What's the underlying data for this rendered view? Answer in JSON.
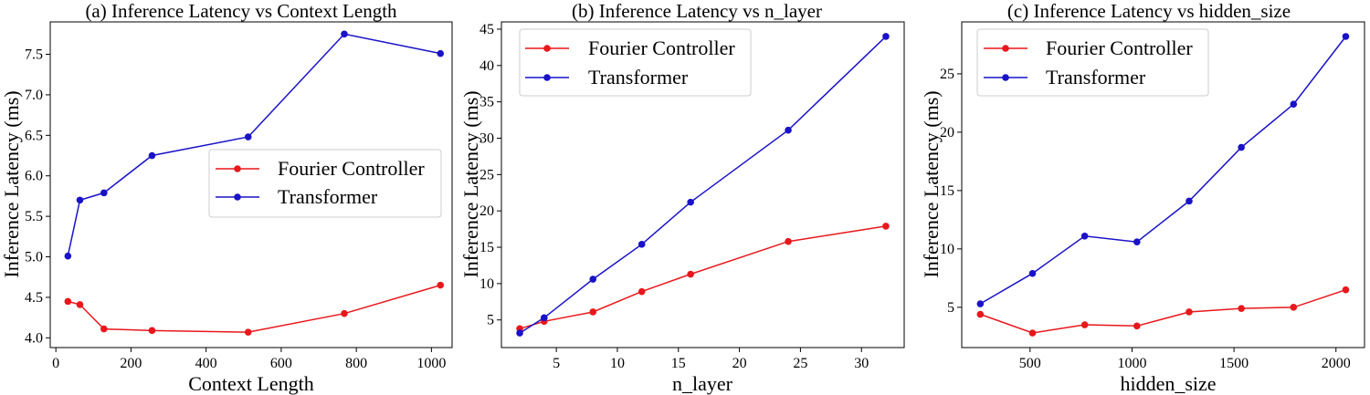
{
  "chart_data": [
    {
      "type": "line",
      "title": "(a) Inference Latency vs Context Length",
      "xlabel": "Context Length",
      "ylabel": "Inference Latency (ms)",
      "xlim": [
        -15,
        1055
      ],
      "ylim": [
        3.88,
        7.9
      ],
      "xticks": [
        0,
        200,
        400,
        600,
        800,
        1000
      ],
      "yticks": [
        4.0,
        4.5,
        5.0,
        5.5,
        6.0,
        6.5,
        7.0,
        7.5
      ],
      "yfmt": 1,
      "legend": "center-right",
      "series": [
        {
          "name": "Fourier Controller",
          "color": "#e8171c",
          "x": [
            32,
            64,
            128,
            256,
            512,
            768,
            1024
          ],
          "y": [
            4.45,
            4.41,
            4.11,
            4.09,
            4.07,
            4.3,
            4.65
          ]
        },
        {
          "name": "Transformer",
          "color": "#1a12c8",
          "x": [
            32,
            64,
            128,
            256,
            512,
            768,
            1024
          ],
          "y": [
            5.01,
            5.7,
            5.79,
            6.25,
            6.48,
            7.75,
            7.51
          ]
        }
      ]
    },
    {
      "type": "line",
      "title": "(b) Inference Latency vs n_layer",
      "xlabel": "n_layer",
      "ylabel": "Inference Latency (ms)",
      "xlim": [
        0.5,
        33.5
      ],
      "ylim": [
        1.2,
        46.0
      ],
      "xticks": [
        5,
        10,
        15,
        20,
        25,
        30
      ],
      "yticks": [
        5,
        10,
        15,
        20,
        25,
        30,
        35,
        40,
        45
      ],
      "yfmt": 0,
      "legend": "upper-left",
      "series": [
        {
          "name": "Fourier Controller",
          "color": "#e8171c",
          "x": [
            2,
            4,
            8,
            12,
            16,
            24,
            32
          ],
          "y": [
            3.8,
            4.8,
            6.1,
            8.9,
            11.3,
            15.8,
            17.9
          ]
        },
        {
          "name": "Transformer",
          "color": "#1a12c8",
          "x": [
            2,
            4,
            8,
            12,
            16,
            24,
            32
          ],
          "y": [
            3.2,
            5.3,
            10.6,
            15.4,
            21.2,
            31.1,
            44.0
          ]
        }
      ]
    },
    {
      "type": "line",
      "title": "(c) Inference Latency vs hidden_size",
      "xlabel": "hidden_size",
      "ylabel": "Inference Latency (ms)",
      "xlim": [
        165,
        2140
      ],
      "ylim": [
        1.55,
        29.45
      ],
      "xticks": [
        500,
        1000,
        1500,
        2000
      ],
      "yticks": [
        5,
        10,
        15,
        20,
        25
      ],
      "yfmt": 0,
      "legend": "upper-left",
      "series": [
        {
          "name": "Fourier Controller",
          "color": "#e8171c",
          "x": [
            256,
            512,
            768,
            1024,
            1280,
            1536,
            1792,
            2048
          ],
          "y": [
            4.4,
            2.8,
            3.5,
            3.4,
            4.6,
            4.9,
            5.0,
            6.5
          ]
        },
        {
          "name": "Transformer",
          "color": "#1a12c8",
          "x": [
            256,
            512,
            768,
            1024,
            1280,
            1536,
            1792,
            2048
          ],
          "y": [
            5.3,
            7.9,
            11.1,
            10.6,
            14.1,
            18.7,
            22.4,
            28.2
          ]
        }
      ]
    }
  ]
}
